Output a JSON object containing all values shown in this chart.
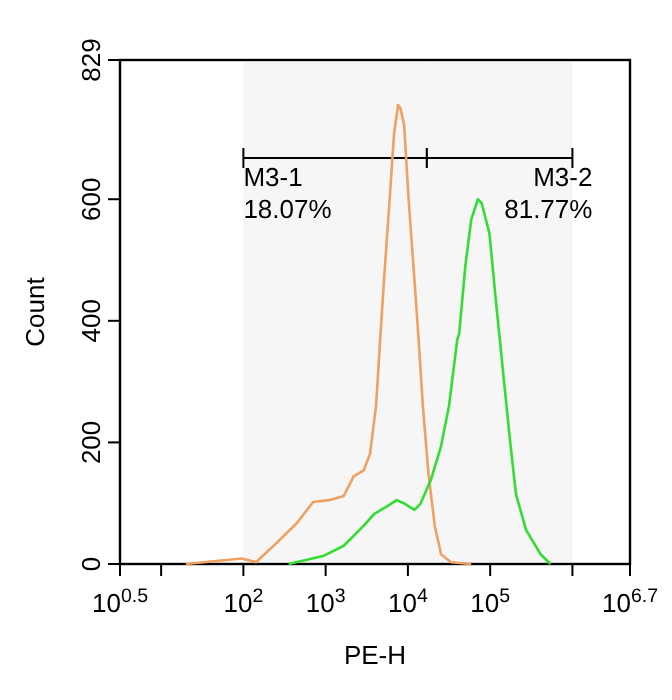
{
  "chart_data": {
    "type": "line",
    "xlabel": "PE-H",
    "ylabel": "Count",
    "log": "x",
    "xlim": [
      3.162,
      5011872
    ],
    "xticks": [
      {
        "value": 3.162,
        "label": "10$^{0.5}$"
      },
      {
        "value": 10,
        "label": null
      },
      {
        "value": 100,
        "label": "10$^{2}$"
      },
      {
        "value": 1000,
        "label": "10$^{3}$"
      },
      {
        "value": 10000,
        "label": "10$^{4}$"
      },
      {
        "value": 100000,
        "label": "10$^{5}$"
      },
      {
        "value": 1000000,
        "label": null
      },
      {
        "value": 5011872,
        "label": "10$^{6.7}$"
      }
    ],
    "ylim": [
      0,
      829
    ],
    "yticks": [
      0,
      200,
      400,
      600,
      829
    ],
    "series": [
      {
        "color": "#f0a060",
        "x": [
          20,
          96,
          142,
          250,
          445,
          705,
          1100,
          1660,
          2190,
          2910,
          3470,
          4100,
          4600,
          5130,
          6000,
          6800,
          7600,
          8100,
          9000,
          10200,
          12000,
          13500,
          15200,
          17800,
          21200,
          25300,
          33400,
          58800
        ],
        "values": [
          0,
          9,
          3,
          34,
          67,
          102,
          105,
          112,
          144,
          154,
          182,
          260,
          369,
          468,
          600,
          709,
          755,
          750,
          722,
          600,
          468,
          369,
          260,
          148,
          63,
          16,
          3,
          0
        ]
      },
      {
        "color": "#33dd33",
        "x": [
          355,
          930,
          1660,
          2910,
          3870,
          5760,
          7300,
          9200,
          12000,
          14200,
          19000,
          25300,
          31600,
          39800,
          42000,
          50000,
          59000,
          71000,
          79000,
          98000,
          117000,
          131000,
          174000,
          206000,
          273000,
          410000,
          540000
        ],
        "values": [
          0,
          13,
          30,
          63,
          82,
          96,
          105,
          99,
          89,
          99,
          138,
          194,
          260,
          369,
          379,
          491,
          567,
          600,
          593,
          544,
          435,
          369,
          204,
          115,
          56,
          16,
          0
        ]
      }
    ],
    "bands": [
      {
        "axis": "x",
        "from": 100,
        "to": 17000,
        "label": "M3-1",
        "color": "#f6f6f6"
      },
      {
        "axis": "x",
        "from": 17000,
        "to": 1000000,
        "label": "M3-2",
        "color": "#f6f6f6"
      }
    ],
    "annotations": [
      "18.07%",
      "81.77%"
    ]
  }
}
